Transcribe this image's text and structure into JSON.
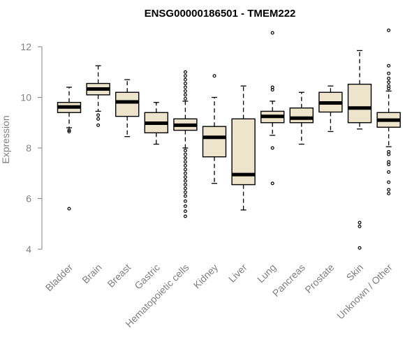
{
  "chart_data": {
    "type": "boxplot",
    "title": "ENSG00000186501 - TMEM222",
    "xlabel": "",
    "ylabel": "Expression",
    "ylim": [
      4,
      12
    ],
    "yticks": [
      4,
      6,
      8,
      10,
      12
    ],
    "categories": [
      "Bladder",
      "Brain",
      "Breast",
      "Gastric",
      "Hematopoietic cells",
      "Kidney",
      "Liver",
      "Lung",
      "Pancreas",
      "Prostate",
      "Skin",
      "Unknown / Other"
    ],
    "boxes": [
      {
        "category": "Bladder",
        "whisker_low": 8.8,
        "q1": 9.4,
        "median": 9.62,
        "q3": 9.8,
        "whisker_high": 10.4,
        "outliers": [
          8.7,
          8.65,
          5.6
        ]
      },
      {
        "category": "Brain",
        "whisker_low": 9.45,
        "q1": 10.1,
        "median": 10.33,
        "q3": 10.55,
        "whisker_high": 11.25,
        "outliers": [
          9.3,
          9.15,
          8.9
        ]
      },
      {
        "category": "Breast",
        "whisker_low": 8.45,
        "q1": 9.25,
        "median": 9.82,
        "q3": 10.2,
        "whisker_high": 10.7,
        "outliers": []
      },
      {
        "category": "Gastric",
        "whisker_low": 8.15,
        "q1": 8.6,
        "median": 8.98,
        "q3": 9.4,
        "whisker_high": 9.8,
        "outliers": []
      },
      {
        "category": "Hematopoietic cells",
        "whisker_low": 8.0,
        "q1": 8.7,
        "median": 8.9,
        "q3": 9.15,
        "whisker_high": 9.85,
        "outliers": [
          11.0,
          10.85,
          10.7,
          10.55,
          10.4,
          10.25,
          10.1,
          9.95,
          7.9,
          7.75,
          7.6,
          7.45,
          7.3,
          7.15,
          7.0,
          6.85,
          6.7,
          6.55,
          6.4,
          6.25,
          6.1,
          5.9,
          5.7,
          5.5,
          5.3
        ]
      },
      {
        "category": "Kidney",
        "whisker_low": 6.6,
        "q1": 7.65,
        "median": 8.42,
        "q3": 8.85,
        "whisker_high": 10.0,
        "outliers": [
          10.85
        ]
      },
      {
        "category": "Liver",
        "whisker_low": 5.55,
        "q1": 6.55,
        "median": 6.95,
        "q3": 9.15,
        "whisker_high": 10.45,
        "outliers": []
      },
      {
        "category": "Lung",
        "whisker_low": 8.5,
        "q1": 9.0,
        "median": 9.25,
        "q3": 9.45,
        "whisker_high": 9.85,
        "outliers": [
          12.55,
          10.4,
          10.3,
          8.0,
          6.6
        ]
      },
      {
        "category": "Pancreas",
        "whisker_low": 8.15,
        "q1": 9.0,
        "median": 9.18,
        "q3": 9.58,
        "whisker_high": 10.2,
        "outliers": []
      },
      {
        "category": "Prostate",
        "whisker_low": 8.65,
        "q1": 9.42,
        "median": 9.78,
        "q3": 10.2,
        "whisker_high": 10.45,
        "outliers": []
      },
      {
        "category": "Skin",
        "whisker_low": 8.75,
        "q1": 9.0,
        "median": 9.58,
        "q3": 10.52,
        "whisker_high": 11.85,
        "outliers": [
          5.05,
          4.9,
          4.05
        ]
      },
      {
        "category": "Unknown / Other",
        "whisker_low": 8.05,
        "q1": 8.82,
        "median": 9.1,
        "q3": 9.4,
        "whisker_high": 10.25,
        "outliers": [
          12.65,
          11.25,
          10.95,
          10.75,
          10.6,
          10.45,
          10.35,
          7.85,
          7.75,
          7.45,
          7.35,
          7.05,
          6.65,
          6.35,
          6.2
        ]
      }
    ],
    "colors": {
      "box_fill": "#ede4cc",
      "box_stroke": "#000000",
      "median": "#000000",
      "axis": "#808080",
      "title": "#000000"
    }
  }
}
